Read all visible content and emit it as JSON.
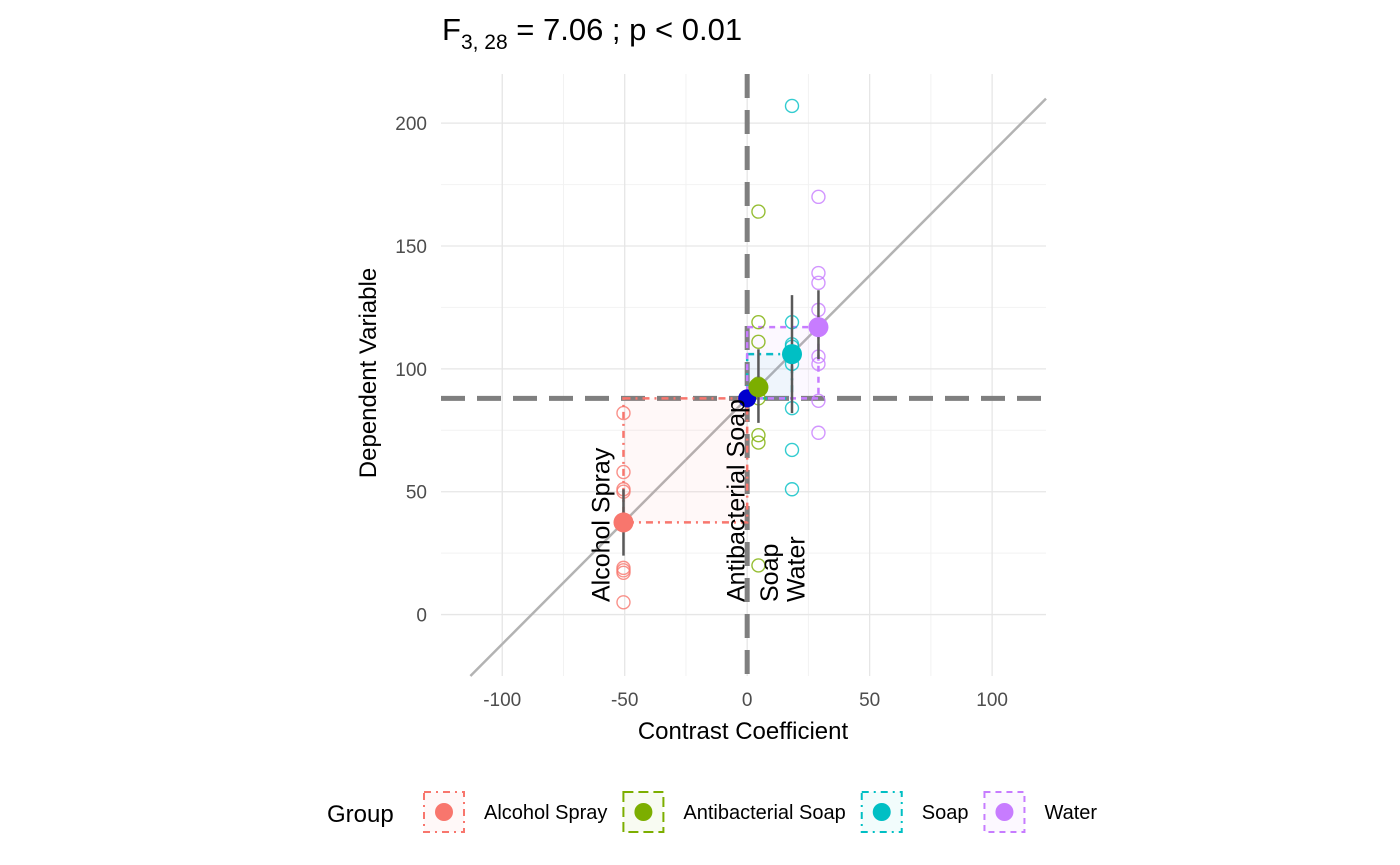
{
  "chart_data": {
    "type": "scatter",
    "title": {
      "main": "F",
      "subscript": "3, 28",
      "rest": " = 7.06 ; p  < 0.01"
    },
    "xlabel": "Contrast Coefficient",
    "ylabel": "Dependent Variable",
    "xlim": [
      -125,
      122
    ],
    "ylim": [
      -25,
      220
    ],
    "x_ticks": [
      -100,
      -50,
      0,
      50,
      100
    ],
    "y_ticks": [
      0,
      50,
      100,
      150,
      200
    ],
    "grid": true,
    "grand_mean": {
      "x": 0,
      "y": 88,
      "color": "#0000CD"
    },
    "reference_line": {
      "slope": 1,
      "intercept": 88
    },
    "legend": {
      "title": "Group",
      "position": "bottom"
    },
    "groups": [
      {
        "name": "Alcohol Spray",
        "color": "#F8766D",
        "dash": "dotdash",
        "contrast": -50.5,
        "mean": 37.5,
        "se_low": 24,
        "se_high": 51,
        "points": [
          5,
          17,
          18,
          19,
          50,
          51,
          58,
          82
        ]
      },
      {
        "name": "Antibacterial Soap",
        "color": "#7CAE00",
        "dash": "longdash",
        "contrast": 4.6,
        "mean": 92.5,
        "se_low": 78,
        "se_high": 108,
        "points": [
          20,
          70,
          73,
          88,
          94,
          111,
          119,
          164
        ]
      },
      {
        "name": "Soap",
        "color": "#00BFC4",
        "dash": "dotdash",
        "contrast": 18.3,
        "mean": 106,
        "se_low": 82,
        "se_high": 130,
        "points": [
          51,
          67,
          84,
          102,
          109,
          110,
          119,
          207
        ]
      },
      {
        "name": "Water",
        "color": "#C77CFF",
        "dash": "dashed",
        "contrast": 29.1,
        "mean": 117,
        "se_low": 104,
        "se_high": 132,
        "points": [
          74,
          87,
          102,
          105,
          124,
          135,
          139,
          170
        ]
      }
    ]
  }
}
